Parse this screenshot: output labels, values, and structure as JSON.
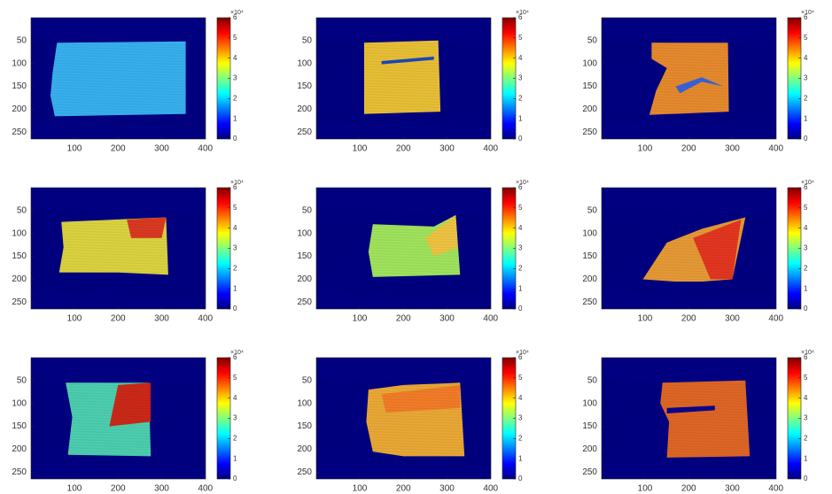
{
  "chart_data": [
    {
      "type": "image",
      "colormap": "jet",
      "xlim": [
        0.5,
        400.5
      ],
      "ylim": [
        0.5,
        264.5
      ],
      "xticks": [
        100,
        200,
        300,
        400
      ],
      "yticks": [
        50,
        100,
        150,
        200,
        250
      ],
      "colorbar": {
        "clim": [
          0,
          6
        ],
        "ticks": [
          0,
          1,
          2,
          3,
          4,
          5,
          6
        ],
        "exponent": "×10⁴"
      }
    },
    {
      "type": "image",
      "colormap": "jet",
      "xlim": [
        0.5,
        400.5
      ],
      "ylim": [
        0.5,
        264.5
      ],
      "xticks": [
        100,
        200,
        300,
        400
      ],
      "yticks": [
        50,
        100,
        150,
        200,
        250
      ],
      "colorbar": {
        "clim": [
          0,
          6
        ],
        "ticks": [
          0,
          1,
          2,
          3,
          4,
          5,
          6
        ],
        "exponent": "×10⁴"
      }
    },
    {
      "type": "image",
      "colormap": "jet",
      "xlim": [
        0.5,
        400.5
      ],
      "ylim": [
        0.5,
        264.5
      ],
      "xticks": [
        100,
        200,
        300,
        400
      ],
      "yticks": [
        50,
        100,
        150,
        200,
        250
      ],
      "colorbar": {
        "clim": [
          0,
          6
        ],
        "ticks": [
          0,
          1,
          2,
          3,
          4,
          5,
          6
        ],
        "exponent": "×10⁴"
      }
    },
    {
      "type": "image",
      "colormap": "jet",
      "xlim": [
        0.5,
        400.5
      ],
      "ylim": [
        0.5,
        264.5
      ],
      "xticks": [
        100,
        200,
        300,
        400
      ],
      "yticks": [
        50,
        100,
        150,
        200,
        250
      ],
      "colorbar": {
        "clim": [
          0,
          6
        ],
        "ticks": [
          0,
          1,
          2,
          3,
          4,
          5,
          6
        ],
        "exponent": "×10⁴"
      }
    },
    {
      "type": "image",
      "colormap": "jet",
      "xlim": [
        0.5,
        400.5
      ],
      "ylim": [
        0.5,
        264.5
      ],
      "xticks": [
        100,
        200,
        300,
        400
      ],
      "yticks": [
        50,
        100,
        150,
        200,
        250
      ],
      "colorbar": {
        "clim": [
          0,
          6
        ],
        "ticks": [
          0,
          1,
          2,
          3,
          4,
          5,
          6
        ],
        "exponent": "×10⁴"
      }
    },
    {
      "type": "image",
      "colormap": "jet",
      "xlim": [
        0.5,
        400.5
      ],
      "ylim": [
        0.5,
        264.5
      ],
      "xticks": [
        100,
        200,
        300,
        400
      ],
      "yticks": [
        50,
        100,
        150,
        200,
        250
      ],
      "colorbar": {
        "clim": [
          0,
          6
        ],
        "ticks": [
          0,
          1,
          2,
          3,
          4,
          5,
          6
        ],
        "exponent": "×10⁴"
      }
    },
    {
      "type": "image",
      "colormap": "jet",
      "xlim": [
        0.5,
        400.5
      ],
      "ylim": [
        0.5,
        264.5
      ],
      "xticks": [
        100,
        200,
        300,
        400
      ],
      "yticks": [
        50,
        100,
        150,
        200,
        250
      ],
      "colorbar": {
        "clim": [
          0,
          6
        ],
        "ticks": [
          0,
          1,
          2,
          3,
          4,
          5,
          6
        ],
        "exponent": "×10⁴"
      }
    },
    {
      "type": "image",
      "colormap": "jet",
      "xlim": [
        0.5,
        400.5
      ],
      "ylim": [
        0.5,
        264.5
      ],
      "xticks": [
        100,
        200,
        300,
        400
      ],
      "yticks": [
        50,
        100,
        150,
        200,
        250
      ],
      "colorbar": {
        "clim": [
          0,
          6
        ],
        "ticks": [
          0,
          1,
          2,
          3,
          4,
          5,
          6
        ],
        "exponent": "×10⁴"
      }
    },
    {
      "type": "image",
      "colormap": "jet",
      "xlim": [
        0.5,
        400.5
      ],
      "ylim": [
        0.5,
        264.5
      ],
      "xticks": [
        100,
        200,
        300,
        400
      ],
      "yticks": [
        50,
        100,
        150,
        200,
        250
      ],
      "colorbar": {
        "clim": [
          0,
          6
        ],
        "ticks": [
          0,
          1,
          2,
          3,
          4,
          5,
          6
        ],
        "exponent": "×10⁴"
      }
    }
  ]
}
